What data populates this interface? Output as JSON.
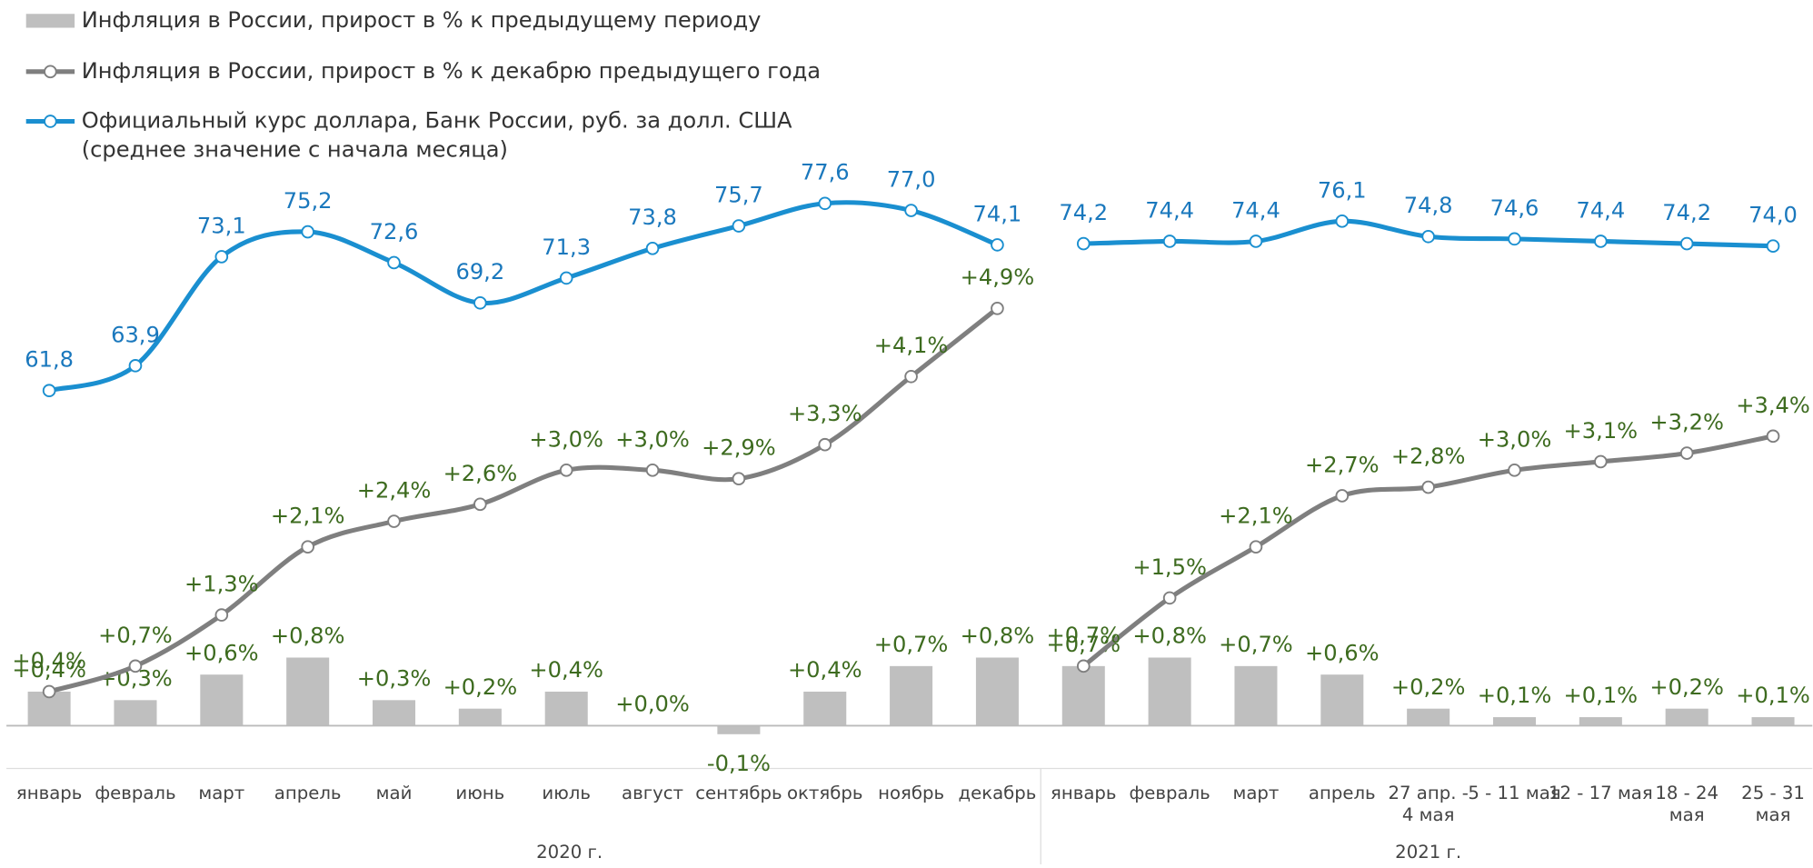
{
  "chart_data": {
    "type": "combo",
    "groups": [
      {
        "label": "2020 г.",
        "categories": [
          [
            "январь"
          ],
          [
            "февраль"
          ],
          [
            "март"
          ],
          [
            "апрель"
          ],
          [
            "май"
          ],
          [
            "июнь"
          ],
          [
            "июль"
          ],
          [
            "август"
          ],
          [
            "сентябрь"
          ],
          [
            "октябрь"
          ],
          [
            "ноябрь"
          ],
          [
            "декабрь"
          ]
        ]
      },
      {
        "label": "2021 г.",
        "categories": [
          [
            "январь"
          ],
          [
            "февраль"
          ],
          [
            "март"
          ],
          [
            "апрель"
          ],
          [
            "27 апр. -",
            "4 мая"
          ],
          [
            "5 - 11 мая"
          ],
          [
            "12 - 17 мая"
          ],
          [
            "18 - 24",
            "мая"
          ],
          [
            "25 - 31",
            "мая"
          ]
        ]
      }
    ],
    "series": [
      {
        "name": [
          "Инфляция в России, прирост в % к предыдущему периоду"
        ],
        "type": "bar",
        "color": "#bfbfbf",
        "label_color": "#3d6b1f",
        "values": [
          0.4,
          0.3,
          0.6,
          0.8,
          0.3,
          0.2,
          0.4,
          0.0,
          -0.1,
          0.4,
          0.7,
          0.8,
          0.7,
          0.8,
          0.7,
          0.6,
          0.2,
          0.1,
          0.1,
          0.2,
          0.1
        ],
        "value_labels": [
          "+0,4%",
          "+0,3%",
          "+0,6%",
          "+0,8%",
          "+0,3%",
          "+0,2%",
          "+0,4%",
          "+0,0%",
          "-0,1%",
          "+0,4%",
          "+0,7%",
          "+0,8%",
          "+0,7%",
          "+0,8%",
          "+0,7%",
          "+0,6%",
          "+0,2%",
          "+0,1%",
          "+0,1%",
          "+0,2%",
          "+0,1%"
        ]
      },
      {
        "name": [
          "Инфляция в России, прирост в % к декабрю предыдущего года"
        ],
        "type": "line",
        "color": "#7f7f7f",
        "label_color": "#3d6b1f",
        "values": [
          0.4,
          0.7,
          1.3,
          2.1,
          2.4,
          2.6,
          3.0,
          3.0,
          2.9,
          3.3,
          4.1,
          4.9,
          0.7,
          1.5,
          2.1,
          2.7,
          2.8,
          3.0,
          3.1,
          3.2,
          3.4
        ],
        "value_labels": [
          "+0,4%",
          "+0,7%",
          "+1,3%",
          "+2,1%",
          "+2,4%",
          "+2,6%",
          "+3,0%",
          "+3,0%",
          "+2,9%",
          "+3,3%",
          "+4,1%",
          "+4,9%",
          "+0,7%",
          "+1,5%",
          "+2,1%",
          "+2,7%",
          "+2,8%",
          "+3,0%",
          "+3,1%",
          "+3,2%",
          "+3,4%"
        ]
      },
      {
        "name": [
          "Официальный курс доллара, Банк России, руб. за долл. США",
          "(среднее значение с начала месяца)"
        ],
        "type": "line",
        "axis": "y2",
        "color": "#1a8fd0",
        "label_color": "#1a78bd",
        "values": [
          61.8,
          63.9,
          73.1,
          75.2,
          72.6,
          69.2,
          71.3,
          73.8,
          75.7,
          77.6,
          77.0,
          74.1,
          74.2,
          74.4,
          74.4,
          76.1,
          74.8,
          74.6,
          74.4,
          74.2,
          74.0
        ],
        "value_labels": [
          "61,8",
          "63,9",
          "73,1",
          "75,2",
          "72,6",
          "69,2",
          "71,3",
          "73,8",
          "75,7",
          "77,6",
          "77,0",
          "74,1",
          "74,2",
          "74,4",
          "74,4",
          "76,1",
          "74,8",
          "74,6",
          "74,4",
          "74,2",
          "74,0"
        ]
      }
    ]
  }
}
